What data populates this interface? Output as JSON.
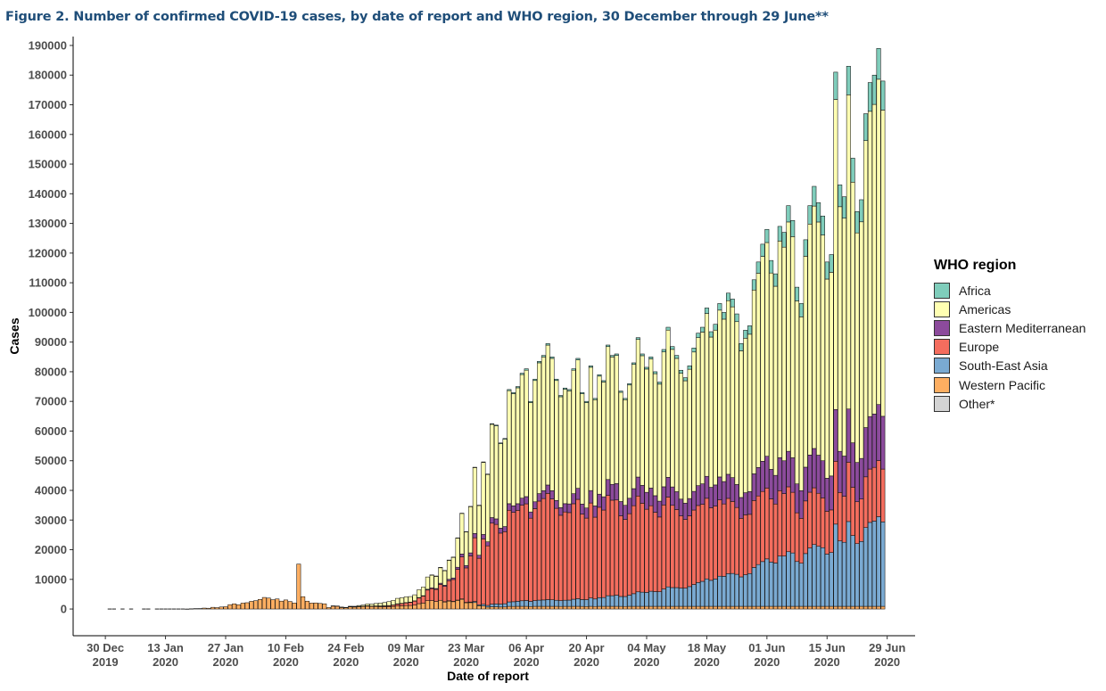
{
  "figure": {
    "title": "Figure 2. Number of confirmed COVID-19 cases, by date of report and WHO region, 30 December through 29 June**"
  },
  "chart_data": {
    "type": "bar",
    "stacked": true,
    "xlabel": "Date of report",
    "ylabel": "Cases",
    "ylim": [
      -9000,
      193000
    ],
    "y_ticks": [
      0,
      10000,
      20000,
      30000,
      40000,
      50000,
      60000,
      70000,
      80000,
      90000,
      100000,
      110000,
      120000,
      130000,
      140000,
      150000,
      160000,
      170000,
      180000,
      190000
    ],
    "x_range": [
      "2019-12-23",
      "2020-07-06"
    ],
    "x_ticks": [
      {
        "date": "2019-12-30",
        "line1": "30 Dec",
        "line2": "2019"
      },
      {
        "date": "2020-01-13",
        "line1": "13 Jan",
        "line2": "2020"
      },
      {
        "date": "2020-01-27",
        "line1": "27 Jan",
        "line2": "2020"
      },
      {
        "date": "2020-02-10",
        "line1": "10 Feb",
        "line2": "2020"
      },
      {
        "date": "2020-02-24",
        "line1": "24 Feb",
        "line2": "2020"
      },
      {
        "date": "2020-03-09",
        "line1": "09 Mar",
        "line2": "2020"
      },
      {
        "date": "2020-03-23",
        "line1": "23 Mar",
        "line2": "2020"
      },
      {
        "date": "2020-04-06",
        "line1": "06 Apr",
        "line2": "2020"
      },
      {
        "date": "2020-04-20",
        "line1": "20 Apr",
        "line2": "2020"
      },
      {
        "date": "2020-05-04",
        "line1": "04 May",
        "line2": "2020"
      },
      {
        "date": "2020-05-18",
        "line1": "18 May",
        "line2": "2020"
      },
      {
        "date": "2020-06-01",
        "line1": "01 Jun",
        "line2": "2020"
      },
      {
        "date": "2020-06-15",
        "line1": "15 Jun",
        "line2": "2020"
      },
      {
        "date": "2020-06-29",
        "line1": "29 Jun",
        "line2": "2020"
      }
    ],
    "legend": {
      "title": "WHO region",
      "position": "right",
      "entries": [
        {
          "name": "Africa",
          "color": "#7fcdbb"
        },
        {
          "name": "Americas",
          "color": "#ffffb2"
        },
        {
          "name": "Eastern Mediterranean",
          "color": "#8c4b9c"
        },
        {
          "name": "Europe",
          "color": "#f46d5e"
        },
        {
          "name": "South-East Asia",
          "color": "#7aaad2"
        },
        {
          "name": "Western Pacific",
          "color": "#fdae61"
        },
        {
          "name": "Other*",
          "color": "#d3d3d3"
        }
      ]
    },
    "stack_order": [
      "Western Pacific",
      "South-East Asia",
      "Europe",
      "Eastern Mediterranean",
      "Americas",
      "Africa"
    ],
    "bars": [
      {
        "date": "2019-12-31",
        "total": 0
      },
      {
        "date": "2020-01-01",
        "total": 0
      },
      {
        "date": "2020-01-03",
        "total": 0
      },
      {
        "date": "2020-01-05",
        "total": 0
      },
      {
        "date": "2020-01-08",
        "total": 0
      },
      {
        "date": "2020-01-09",
        "total": 0
      },
      {
        "date": "2020-01-11",
        "total": 0
      },
      {
        "date": "2020-01-12",
        "total": 0
      },
      {
        "date": "2020-01-13",
        "total": 0
      },
      {
        "date": "2020-01-14",
        "total": 0
      },
      {
        "date": "2020-01-15",
        "total": 0
      },
      {
        "date": "2020-01-16",
        "total": 0
      },
      {
        "date": "2020-01-17",
        "total": 0
      },
      {
        "date": "2020-01-18",
        "total": 20
      },
      {
        "date": "2020-01-19",
        "total": 80
      },
      {
        "date": "2020-01-20",
        "total": 140
      },
      {
        "date": "2020-01-21",
        "total": 150
      },
      {
        "date": "2020-01-22",
        "total": 310
      },
      {
        "date": "2020-01-23",
        "total": 260
      },
      {
        "date": "2020-01-24",
        "total": 570
      },
      {
        "date": "2020-01-25",
        "total": 470
      },
      {
        "date": "2020-01-26",
        "total": 690
      },
      {
        "date": "2020-01-27",
        "total": 780
      },
      {
        "date": "2020-01-28",
        "total": 1470
      },
      {
        "date": "2020-01-29",
        "total": 1750
      },
      {
        "date": "2020-01-30",
        "total": 1460
      },
      {
        "date": "2020-01-31",
        "total": 2000
      },
      {
        "date": "2020-02-01",
        "total": 2130
      },
      {
        "date": "2020-02-02",
        "total": 2600
      },
      {
        "date": "2020-02-03",
        "total": 2830
      },
      {
        "date": "2020-02-04",
        "total": 3240
      },
      {
        "date": "2020-02-05",
        "total": 3900
      },
      {
        "date": "2020-02-06",
        "total": 3700
      },
      {
        "date": "2020-02-07",
        "total": 3150
      },
      {
        "date": "2020-02-08",
        "total": 3400
      },
      {
        "date": "2020-02-09",
        "total": 2660
      },
      {
        "date": "2020-02-10",
        "total": 3060
      },
      {
        "date": "2020-02-11",
        "total": 2540
      },
      {
        "date": "2020-02-12",
        "total": 2020
      },
      {
        "date": "2020-02-13",
        "total": 15150
      },
      {
        "date": "2020-02-14",
        "total": 4160
      },
      {
        "date": "2020-02-15",
        "total": 2650
      },
      {
        "date": "2020-02-16",
        "total": 2010
      },
      {
        "date": "2020-02-17",
        "total": 2050
      },
      {
        "date": "2020-02-18",
        "total": 1890
      },
      {
        "date": "2020-02-19",
        "total": 1760
      },
      {
        "date": "2020-02-20",
        "total": 500
      },
      {
        "date": "2020-02-21",
        "total": 1050
      },
      {
        "date": "2020-02-22",
        "total": 1020
      },
      {
        "date": "2020-02-23",
        "total": 640
      },
      {
        "date": "2020-02-24",
        "total": 560
      },
      {
        "date": "2020-02-25",
        "total": 940
      },
      {
        "date": "2020-02-26",
        "total": 930
      },
      {
        "date": "2020-02-27",
        "total": 1180
      },
      {
        "date": "2020-02-28",
        "total": 1340
      },
      {
        "date": "2020-02-29",
        "total": 1690
      },
      {
        "date": "2020-03-01",
        "total": 1660
      },
      {
        "date": "2020-03-02",
        "total": 1880
      },
      {
        "date": "2020-03-03",
        "total": 2000
      },
      {
        "date": "2020-03-04",
        "total": 2200
      },
      {
        "date": "2020-03-05",
        "total": 2500
      },
      {
        "date": "2020-03-06",
        "total": 2900
      },
      {
        "date": "2020-03-07",
        "total": 3600
      },
      {
        "date": "2020-03-08",
        "total": 3800
      },
      {
        "date": "2020-03-09",
        "total": 4100
      },
      {
        "date": "2020-03-10",
        "total": 4200
      },
      {
        "date": "2020-03-11",
        "total": 4800
      },
      {
        "date": "2020-03-12",
        "total": 6500
      },
      {
        "date": "2020-03-13",
        "total": 7400
      },
      {
        "date": "2020-03-14",
        "total": 10800
      },
      {
        "date": "2020-03-15",
        "total": 11500
      },
      {
        "date": "2020-03-16",
        "total": 11100
      },
      {
        "date": "2020-03-17",
        "total": 14000
      },
      {
        "date": "2020-03-18",
        "total": 13000
      },
      {
        "date": "2020-03-19",
        "total": 16500
      },
      {
        "date": "2020-03-20",
        "total": 17500
      },
      {
        "date": "2020-03-21",
        "total": 24000
      },
      {
        "date": "2020-03-22",
        "total": 32300
      },
      {
        "date": "2020-03-23",
        "total": 26100
      },
      {
        "date": "2020-03-24",
        "total": 34600
      },
      {
        "date": "2020-03-25",
        "total": 47800
      },
      {
        "date": "2020-03-26",
        "total": 35000
      },
      {
        "date": "2020-03-27",
        "total": 49600
      },
      {
        "date": "2020-03-28",
        "total": 45500
      },
      {
        "date": "2020-03-29",
        "total": 62500
      },
      {
        "date": "2020-03-30",
        "total": 62000
      },
      {
        "date": "2020-03-31",
        "total": 56000
      },
      {
        "date": "2020-04-01",
        "total": 57500
      },
      {
        "date": "2020-04-02",
        "total": 74000
      },
      {
        "date": "2020-04-03",
        "total": 73000
      },
      {
        "date": "2020-04-04",
        "total": 75000
      },
      {
        "date": "2020-04-05",
        "total": 79500
      },
      {
        "date": "2020-04-06",
        "total": 81000
      },
      {
        "date": "2020-04-07",
        "total": 70000
      },
      {
        "date": "2020-04-08",
        "total": 77500
      },
      {
        "date": "2020-04-09",
        "total": 83500
      },
      {
        "date": "2020-04-10",
        "total": 85500
      },
      {
        "date": "2020-04-11",
        "total": 89500
      },
      {
        "date": "2020-04-12",
        "total": 85000
      },
      {
        "date": "2020-04-13",
        "total": 77500
      },
      {
        "date": "2020-04-14",
        "total": 72000
      },
      {
        "date": "2020-04-15",
        "total": 74500
      },
      {
        "date": "2020-04-16",
        "total": 74000
      },
      {
        "date": "2020-04-17",
        "total": 81000
      },
      {
        "date": "2020-04-18",
        "total": 84500
      },
      {
        "date": "2020-04-19",
        "total": 73000
      },
      {
        "date": "2020-04-20",
        "total": 70000
      },
      {
        "date": "2020-04-21",
        "total": 82000
      },
      {
        "date": "2020-04-22",
        "total": 71000
      },
      {
        "date": "2020-04-23",
        "total": 79000
      },
      {
        "date": "2020-04-24",
        "total": 77000
      },
      {
        "date": "2020-04-25",
        "total": 89000
      },
      {
        "date": "2020-04-26",
        "total": 85500
      },
      {
        "date": "2020-04-27",
        "total": 86000
      },
      {
        "date": "2020-04-28",
        "total": 73500
      },
      {
        "date": "2020-04-29",
        "total": 71000
      },
      {
        "date": "2020-04-30",
        "total": 76000
      },
      {
        "date": "2020-05-01",
        "total": 83000
      },
      {
        "date": "2020-05-02",
        "total": 91500
      },
      {
        "date": "2020-05-03",
        "total": 86000
      },
      {
        "date": "2020-05-04",
        "total": 81500
      },
      {
        "date": "2020-05-05",
        "total": 85000
      },
      {
        "date": "2020-05-06",
        "total": 80000
      },
      {
        "date": "2020-05-07",
        "total": 76500
      },
      {
        "date": "2020-05-08",
        "total": 87500
      },
      {
        "date": "2020-05-09",
        "total": 95000
      },
      {
        "date": "2020-05-10",
        "total": 88500
      },
      {
        "date": "2020-05-11",
        "total": 85500
      },
      {
        "date": "2020-05-12",
        "total": 80500
      },
      {
        "date": "2020-05-13",
        "total": 78000
      },
      {
        "date": "2020-05-14",
        "total": 82000
      },
      {
        "date": "2020-05-15",
        "total": 88000
      },
      {
        "date": "2020-05-16",
        "total": 93000
      },
      {
        "date": "2020-05-17",
        "total": 95000
      },
      {
        "date": "2020-05-18",
        "total": 101500
      },
      {
        "date": "2020-05-19",
        "total": 93500
      },
      {
        "date": "2020-05-20",
        "total": 96000
      },
      {
        "date": "2020-05-21",
        "total": 103000
      },
      {
        "date": "2020-05-22",
        "total": 100000
      },
      {
        "date": "2020-05-23",
        "total": 106500
      },
      {
        "date": "2020-05-24",
        "total": 104500
      },
      {
        "date": "2020-05-25",
        "total": 99500
      },
      {
        "date": "2020-05-26",
        "total": 89500
      },
      {
        "date": "2020-05-27",
        "total": 94000
      },
      {
        "date": "2020-05-28",
        "total": 95500
      },
      {
        "date": "2020-05-29",
        "total": 111000
      },
      {
        "date": "2020-05-30",
        "total": 117000
      },
      {
        "date": "2020-05-31",
        "total": 123000
      },
      {
        "date": "2020-06-01",
        "total": 128000
      },
      {
        "date": "2020-06-02",
        "total": 117500
      },
      {
        "date": "2020-06-03",
        "total": 113000
      },
      {
        "date": "2020-06-04",
        "total": 129000
      },
      {
        "date": "2020-06-05",
        "total": 127000
      },
      {
        "date": "2020-06-06",
        "total": 136000
      },
      {
        "date": "2020-06-07",
        "total": 131000
      },
      {
        "date": "2020-06-08",
        "total": 108500
      },
      {
        "date": "2020-06-09",
        "total": 103000
      },
      {
        "date": "2020-06-10",
        "total": 124500
      },
      {
        "date": "2020-06-11",
        "total": 136000
      },
      {
        "date": "2020-06-12",
        "total": 142500
      },
      {
        "date": "2020-06-13",
        "total": 137000
      },
      {
        "date": "2020-06-14",
        "total": 132500
      },
      {
        "date": "2020-06-15",
        "total": 117000
      },
      {
        "date": "2020-06-16",
        "total": 119500
      },
      {
        "date": "2020-06-17",
        "total": 181000
      },
      {
        "date": "2020-06-18",
        "total": 143000
      },
      {
        "date": "2020-06-19",
        "total": 139000
      },
      {
        "date": "2020-06-20",
        "total": 183000
      },
      {
        "date": "2020-06-21",
        "total": 152000
      },
      {
        "date": "2020-06-22",
        "total": 134000
      },
      {
        "date": "2020-06-23",
        "total": 138000
      },
      {
        "date": "2020-06-24",
        "total": 167000
      },
      {
        "date": "2020-06-25",
        "total": 177500
      },
      {
        "date": "2020-06-26",
        "total": 180000
      },
      {
        "date": "2020-06-27",
        "total": 189000
      },
      {
        "date": "2020-06-28",
        "total": 178000
      }
    ]
  }
}
